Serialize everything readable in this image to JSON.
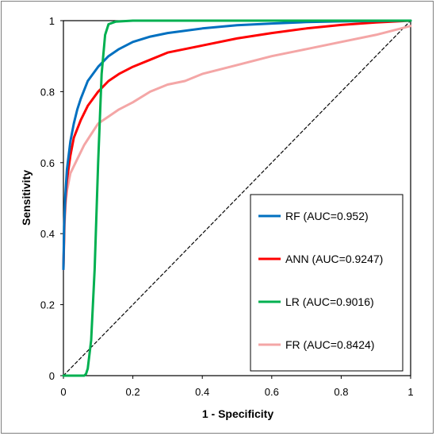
{
  "chart_data": {
    "type": "line",
    "title": "",
    "xlabel": "1 - Specificity",
    "ylabel": "Sensitivity",
    "xlim": [
      0,
      1
    ],
    "ylim": [
      0,
      1
    ],
    "x_ticks": [
      "0",
      "0.2",
      "0.4",
      "0.6",
      "0.8",
      "1"
    ],
    "y_ticks": [
      "0",
      "0.2",
      "0.4",
      "0.6",
      "0.8",
      "1"
    ],
    "grid": false,
    "legend_position": "bottom-right",
    "series": [
      {
        "name": "RF (AUC=0.952)",
        "color": "#0070C0",
        "x": [
          0,
          0.002,
          0.005,
          0.01,
          0.02,
          0.03,
          0.04,
          0.05,
          0.07,
          0.1,
          0.13,
          0.16,
          0.2,
          0.25,
          0.3,
          0.4,
          0.5,
          0.6,
          0.7,
          0.8,
          0.9,
          1
        ],
        "y": [
          0.3,
          0.42,
          0.5,
          0.58,
          0.66,
          0.71,
          0.75,
          0.78,
          0.83,
          0.87,
          0.9,
          0.92,
          0.94,
          0.955,
          0.965,
          0.978,
          0.987,
          0.992,
          0.996,
          0.998,
          0.999,
          1
        ]
      },
      {
        "name": "ANN (AUC=0.9247)",
        "color": "#FF0000",
        "x": [
          0,
          0.003,
          0.006,
          0.01,
          0.02,
          0.03,
          0.05,
          0.07,
          0.1,
          0.13,
          0.16,
          0.2,
          0.25,
          0.3,
          0.4,
          0.5,
          0.6,
          0.7,
          0.8,
          0.9,
          1
        ],
        "y": [
          0.3,
          0.44,
          0.5,
          0.55,
          0.62,
          0.67,
          0.72,
          0.76,
          0.8,
          0.83,
          0.85,
          0.87,
          0.89,
          0.91,
          0.93,
          0.95,
          0.965,
          0.978,
          0.988,
          0.995,
          1
        ]
      },
      {
        "name": "LR (AUC=0.9016)",
        "color": "#00B050",
        "x": [
          0,
          0.06,
          0.065,
          0.07,
          0.08,
          0.09,
          0.1,
          0.11,
          0.12,
          0.13,
          0.15,
          0.2,
          0.4,
          0.6,
          0.8,
          1
        ],
        "y": [
          0,
          0,
          0.005,
          0.02,
          0.1,
          0.3,
          0.6,
          0.85,
          0.96,
          0.99,
          0.997,
          1,
          1,
          1,
          1,
          1
        ]
      },
      {
        "name": "FR (AUC=0.8424)",
        "color": "#F4A6A6",
        "x": [
          0,
          0.003,
          0.006,
          0.01,
          0.02,
          0.04,
          0.06,
          0.08,
          0.1,
          0.13,
          0.16,
          0.2,
          0.25,
          0.3,
          0.35,
          0.4,
          0.5,
          0.6,
          0.7,
          0.8,
          0.9,
          1
        ],
        "y": [
          0.3,
          0.42,
          0.48,
          0.52,
          0.57,
          0.61,
          0.65,
          0.68,
          0.71,
          0.73,
          0.75,
          0.77,
          0.8,
          0.82,
          0.83,
          0.85,
          0.875,
          0.9,
          0.92,
          0.94,
          0.96,
          0.985
        ]
      },
      {
        "name": "",
        "color": "#000000",
        "dashed": true,
        "x": [
          0,
          1
        ],
        "y": [
          0,
          1
        ]
      }
    ]
  }
}
